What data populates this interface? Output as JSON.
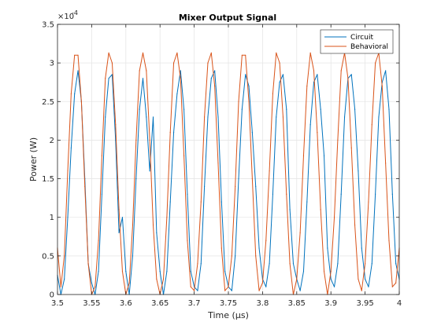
{
  "chart_data": {
    "type": "line",
    "title": "Mixer Output Signal",
    "xlabel": "Time (μs)",
    "ylabel": "Power (W)",
    "y_exponent_label": "×10",
    "y_exponent": "-4",
    "xlim": [
      3.5,
      4.0
    ],
    "ylim": [
      0,
      3.5
    ],
    "x_ticks": [
      "3.5",
      "3.55",
      "3.6",
      "3.65",
      "3.7",
      "3.75",
      "3.8",
      "3.85",
      "3.9",
      "3.95",
      "4"
    ],
    "y_ticks": [
      "0",
      "0.5",
      "1",
      "1.5",
      "2",
      "2.5",
      "3",
      "3.5"
    ],
    "grid": true,
    "legend_position": "top-right",
    "series": [
      {
        "name": "Circuit",
        "color": "#0072BD",
        "x": [
          3.5,
          3.505,
          3.51,
          3.515,
          3.52,
          3.525,
          3.53,
          3.535,
          3.54,
          3.545,
          3.55,
          3.555,
          3.56,
          3.565,
          3.57,
          3.575,
          3.58,
          3.585,
          3.59,
          3.595,
          3.6,
          3.605,
          3.61,
          3.615,
          3.62,
          3.625,
          3.63,
          3.635,
          3.64,
          3.645,
          3.65,
          3.655,
          3.66,
          3.665,
          3.67,
          3.675,
          3.68,
          3.685,
          3.69,
          3.695,
          3.7,
          3.705,
          3.71,
          3.715,
          3.72,
          3.725,
          3.73,
          3.735,
          3.74,
          3.745,
          3.75,
          3.755,
          3.76,
          3.765,
          3.77,
          3.775,
          3.78,
          3.785,
          3.79,
          3.795,
          3.8,
          3.805,
          3.81,
          3.815,
          3.82,
          3.825,
          3.83,
          3.835,
          3.84,
          3.845,
          3.85,
          3.855,
          3.86,
          3.865,
          3.87,
          3.875,
          3.88,
          3.885,
          3.89,
          3.895,
          3.9,
          3.905,
          3.91,
          3.915,
          3.92,
          3.925,
          3.93,
          3.935,
          3.94,
          3.945,
          3.95,
          3.955,
          3.96,
          3.965,
          3.97,
          3.975,
          3.98,
          3.985,
          3.99,
          3.995,
          4.0
        ],
        "y": [
          0.25,
          0.0,
          0.2,
          1.0,
          1.9,
          2.6,
          2.9,
          2.5,
          1.5,
          0.4,
          0.15,
          0.0,
          0.3,
          1.3,
          2.3,
          2.8,
          2.85,
          2.0,
          0.8,
          1.0,
          0.3,
          0.0,
          0.5,
          1.5,
          2.4,
          2.8,
          2.3,
          1.6,
          2.3,
          0.8,
          0.3,
          0.0,
          0.3,
          1.2,
          2.1,
          2.6,
          2.9,
          2.4,
          1.3,
          0.3,
          0.1,
          0.05,
          0.4,
          1.4,
          2.3,
          2.8,
          2.9,
          2.3,
          1.2,
          0.3,
          0.1,
          0.05,
          0.5,
          1.5,
          2.4,
          2.85,
          2.7,
          2.1,
          1.4,
          0.6,
          0.2,
          0.1,
          0.4,
          1.3,
          2.3,
          2.75,
          2.85,
          2.4,
          1.1,
          0.4,
          0.2,
          0.05,
          0.3,
          1.2,
          2.2,
          2.75,
          2.85,
          2.4,
          1.8,
          0.6,
          0.2,
          0.1,
          0.4,
          1.3,
          2.3,
          2.8,
          2.85,
          2.4,
          1.6,
          0.6,
          0.2,
          0.1,
          0.4,
          1.3,
          2.3,
          2.75,
          2.9,
          2.4,
          1.3,
          0.4,
          0.2
        ]
      },
      {
        "name": "Behavioral",
        "color": "#D95319",
        "x": [
          3.5,
          3.505,
          3.51,
          3.515,
          3.52,
          3.525,
          3.53,
          3.535,
          3.54,
          3.545,
          3.55,
          3.555,
          3.56,
          3.565,
          3.57,
          3.575,
          3.58,
          3.585,
          3.59,
          3.595,
          3.6,
          3.605,
          3.61,
          3.615,
          3.62,
          3.625,
          3.63,
          3.635,
          3.64,
          3.645,
          3.65,
          3.655,
          3.66,
          3.665,
          3.67,
          3.675,
          3.68,
          3.685,
          3.69,
          3.695,
          3.7,
          3.705,
          3.71,
          3.715,
          3.72,
          3.725,
          3.73,
          3.735,
          3.74,
          3.745,
          3.75,
          3.755,
          3.76,
          3.765,
          3.77,
          3.775,
          3.78,
          3.785,
          3.79,
          3.795,
          3.8,
          3.805,
          3.81,
          3.815,
          3.82,
          3.825,
          3.83,
          3.835,
          3.84,
          3.845,
          3.85,
          3.855,
          3.86,
          3.865,
          3.87,
          3.875,
          3.88,
          3.885,
          3.89,
          3.895,
          3.9,
          3.905,
          3.91,
          3.915,
          3.92,
          3.925,
          3.93,
          3.935,
          3.94,
          3.945,
          3.95,
          3.955,
          3.96,
          3.965,
          3.97,
          3.975,
          3.98,
          3.985,
          3.99,
          3.995,
          4.0
        ],
        "y": [
          0.6,
          0.1,
          0.5,
          1.6,
          2.6,
          3.1,
          3.1,
          2.5,
          1.4,
          0.4,
          0.0,
          0.1,
          0.7,
          1.8,
          2.8,
          3.13,
          3.0,
          2.2,
          1.1,
          0.3,
          0.0,
          0.15,
          0.9,
          2.0,
          2.9,
          3.13,
          2.9,
          2.0,
          0.9,
          0.2,
          0.0,
          0.2,
          1.0,
          2.1,
          3.0,
          3.13,
          2.8,
          1.8,
          0.7,
          0.1,
          0.05,
          0.4,
          1.2,
          2.3,
          3.0,
          3.13,
          2.7,
          1.7,
          0.6,
          0.05,
          0.1,
          0.5,
          1.4,
          2.5,
          3.1,
          3.1,
          2.5,
          1.5,
          0.5,
          0.05,
          0.15,
          0.7,
          1.6,
          2.6,
          3.13,
          3.0,
          2.3,
          1.3,
          0.4,
          0.0,
          0.2,
          0.8,
          1.8,
          2.7,
          3.13,
          2.9,
          2.1,
          1.1,
          0.3,
          0.0,
          0.3,
          1.0,
          2.0,
          2.9,
          3.13,
          2.8,
          1.9,
          0.9,
          0.2,
          0.05,
          0.4,
          1.2,
          2.2,
          3.0,
          3.13,
          2.7,
          1.7,
          0.7,
          0.1,
          0.15,
          0.6
        ]
      }
    ]
  }
}
